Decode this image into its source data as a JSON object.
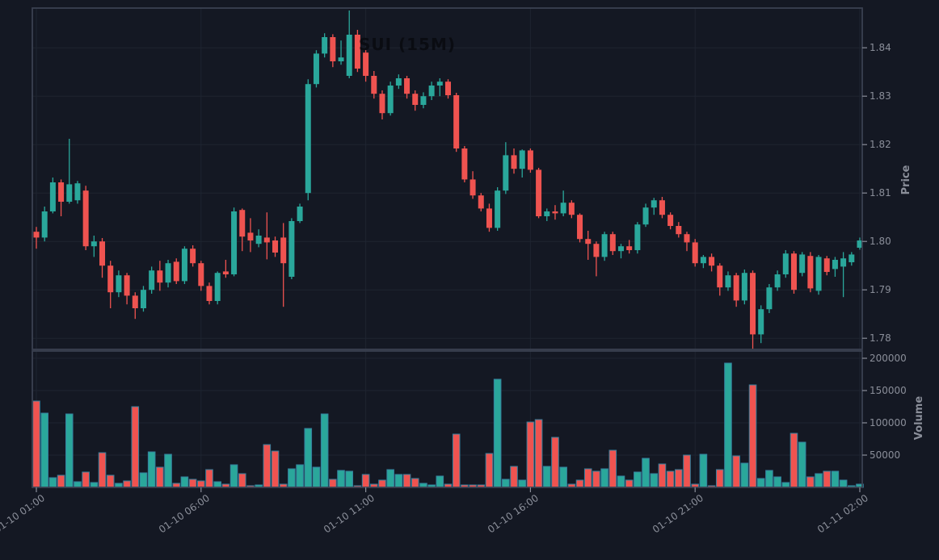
{
  "title": "SUI (15M)",
  "symbol": "SUI",
  "timeframe": "15M",
  "colors": {
    "background": "#141823",
    "up": "#2aa79b",
    "down": "#ef5350",
    "volume_edge": "#35809e",
    "grid": "#1e2430",
    "spine": "#3a4150",
    "tick_text": "#8a8e99",
    "title_text": "#0a0c12"
  },
  "price_axis": {
    "label": "Price",
    "ticks": [
      {
        "label": "1.84",
        "value": 1.84
      },
      {
        "label": "1.83",
        "value": 1.83
      },
      {
        "label": "1.82",
        "value": 1.82
      },
      {
        "label": "1.81",
        "value": 1.81
      },
      {
        "label": "1.80",
        "value": 1.8
      },
      {
        "label": "1.79",
        "value": 1.79
      },
      {
        "label": "1.78",
        "value": 1.78
      }
    ]
  },
  "volume_axis": {
    "label": "Volume",
    "ticks": [
      {
        "label": "200000",
        "value": 200000
      },
      {
        "label": "150000",
        "value": 150000
      },
      {
        "label": "100000",
        "value": 100000
      },
      {
        "label": "50000",
        "value": 50000
      }
    ]
  },
  "time_axis": {
    "ticks": [
      {
        "label": "01-10 01:00",
        "index": 0
      },
      {
        "label": "01-10 06:00",
        "index": 20
      },
      {
        "label": "01-10 11:00",
        "index": 40
      },
      {
        "label": "01-10 16:00",
        "index": 60
      },
      {
        "label": "01-10 21:00",
        "index": 80
      },
      {
        "label": "01-11 02:00",
        "index": 100
      }
    ]
  },
  "chart_data": {
    "type": "candlestick_with_volume",
    "symbol": "SUI",
    "interval": "15M",
    "title": "SUI (15M)",
    "start_time": "01-10 01:00",
    "step_minutes": 15,
    "grid": true,
    "legend": false,
    "price_ylim": [
      1.7777,
      1.8482
    ],
    "volume_ylim": [
      0,
      211250
    ],
    "columns": [
      "open",
      "high",
      "low",
      "close",
      "volume"
    ],
    "candles": [
      [
        1.802,
        1.803,
        1.7985,
        1.8008,
        133750
      ],
      [
        1.8008,
        1.8072,
        1.8,
        1.8062,
        115000
      ],
      [
        1.8062,
        1.8132,
        1.8058,
        1.8122,
        15000
      ],
      [
        1.8122,
        1.8128,
        1.8052,
        1.8082,
        18750
      ],
      [
        1.8082,
        1.8212,
        1.8078,
        1.8118,
        113750
      ],
      [
        1.8085,
        1.8125,
        1.8078,
        1.812,
        8750
      ],
      [
        1.8105,
        1.8115,
        1.7982,
        1.799,
        23750
      ],
      [
        1.799,
        1.8012,
        1.7968,
        1.8,
        7500
      ],
      [
        1.8,
        1.8007,
        1.7925,
        1.795,
        53750
      ],
      [
        1.795,
        1.796,
        1.7862,
        1.7895,
        18750
      ],
      [
        1.7895,
        1.794,
        1.7885,
        1.793,
        6250
      ],
      [
        1.793,
        1.7935,
        1.787,
        1.7888,
        10000
      ],
      [
        1.7888,
        1.7895,
        1.784,
        1.7862,
        125000
      ],
      [
        1.7862,
        1.7908,
        1.7855,
        1.79,
        22500
      ],
      [
        1.79,
        1.7948,
        1.7892,
        1.794,
        55000
      ],
      [
        1.794,
        1.796,
        1.7898,
        1.7915,
        31250
      ],
      [
        1.7915,
        1.7962,
        1.7905,
        1.7955,
        51250
      ],
      [
        1.7958,
        1.7965,
        1.7912,
        1.7918,
        6250
      ],
      [
        1.7918,
        1.799,
        1.7912,
        1.7985,
        16250
      ],
      [
        1.7985,
        1.7992,
        1.7948,
        1.7955,
        12500
      ],
      [
        1.7955,
        1.796,
        1.7898,
        1.7908,
        10000
      ],
      [
        1.7908,
        1.7915,
        1.787,
        1.7877,
        27500
      ],
      [
        1.7877,
        1.7938,
        1.787,
        1.7935,
        8750
      ],
      [
        1.7938,
        1.7962,
        1.7925,
        1.7932,
        5000
      ],
      [
        1.7932,
        1.807,
        1.7928,
        1.8062,
        35000
      ],
      [
        1.8065,
        1.8068,
        1.798,
        1.801,
        21250
      ],
      [
        1.8018,
        1.8048,
        1.7978,
        1.8002,
        2500
      ],
      [
        1.7995,
        1.8025,
        1.7988,
        1.8012,
        3750
      ],
      [
        1.8008,
        1.806,
        1.7963,
        1.7998,
        66250
      ],
      [
        1.8002,
        1.801,
        1.7968,
        1.7977,
        56250
      ],
      [
        1.8008,
        1.8038,
        1.7865,
        1.7955,
        5000
      ],
      [
        1.7927,
        1.8048,
        1.7922,
        1.8042,
        28750
      ],
      [
        1.8042,
        1.8078,
        1.8038,
        1.8072,
        35000
      ],
      [
        1.81,
        1.8335,
        1.8085,
        1.8325,
        91250
      ],
      [
        1.8325,
        1.8395,
        1.8318,
        1.8388,
        31250
      ],
      [
        1.8388,
        1.843,
        1.838,
        1.8422,
        113750
      ],
      [
        1.8422,
        1.8428,
        1.836,
        1.8372,
        12500
      ],
      [
        1.8372,
        1.8415,
        1.8365,
        1.838,
        26250
      ],
      [
        1.8342,
        1.8477,
        1.8337,
        1.8427,
        25000
      ],
      [
        1.8427,
        1.8437,
        1.835,
        1.8357,
        2500
      ],
      [
        1.839,
        1.8397,
        1.833,
        1.8342,
        20000
      ],
      [
        1.8342,
        1.8352,
        1.8295,
        1.8305,
        5000
      ],
      [
        1.8305,
        1.8312,
        1.8252,
        1.8265,
        11250
      ],
      [
        1.8265,
        1.833,
        1.826,
        1.8322,
        27500
      ],
      [
        1.8322,
        1.8345,
        1.8315,
        1.8337,
        20000
      ],
      [
        1.8337,
        1.8342,
        1.8295,
        1.8305,
        20000
      ],
      [
        1.8305,
        1.8312,
        1.827,
        1.8282,
        13750
      ],
      [
        1.8282,
        1.8308,
        1.8275,
        1.83,
        6250
      ],
      [
        1.83,
        1.833,
        1.8292,
        1.8322,
        3750
      ],
      [
        1.8322,
        1.8337,
        1.83,
        1.833,
        17500
      ],
      [
        1.833,
        1.8335,
        1.8295,
        1.8302,
        5000
      ],
      [
        1.8302,
        1.8307,
        1.8185,
        1.8192,
        82500
      ],
      [
        1.8192,
        1.8197,
        1.8122,
        1.8128,
        3750
      ],
      [
        1.8128,
        1.8145,
        1.8088,
        1.8095,
        3750
      ],
      [
        1.8095,
        1.81,
        1.8062,
        1.8068,
        3750
      ],
      [
        1.8068,
        1.8078,
        1.802,
        1.8028,
        52500
      ],
      [
        1.8028,
        1.8112,
        1.8022,
        1.8105,
        167500
      ],
      [
        1.8105,
        1.8205,
        1.8098,
        1.8178,
        12500
      ],
      [
        1.8178,
        1.8192,
        1.814,
        1.815,
        32500
      ],
      [
        1.815,
        1.819,
        1.8132,
        1.8188,
        11250
      ],
      [
        1.8188,
        1.8192,
        1.8142,
        1.8148,
        101250
      ],
      [
        1.8148,
        1.8152,
        1.8048,
        1.8052,
        105000
      ],
      [
        1.8052,
        1.8068,
        1.8042,
        1.8062,
        32500
      ],
      [
        1.8062,
        1.8075,
        1.8045,
        1.8058,
        77500
      ],
      [
        1.8058,
        1.8105,
        1.8052,
        1.808,
        31250
      ],
      [
        1.808,
        1.8085,
        1.8048,
        1.8055,
        5000
      ],
      [
        1.8055,
        1.8058,
        1.7998,
        1.8005,
        11250
      ],
      [
        1.8005,
        1.8022,
        1.7962,
        1.7995,
        28750
      ],
      [
        1.7995,
        1.8,
        1.7928,
        1.7968,
        25000
      ],
      [
        1.7968,
        1.802,
        1.796,
        1.8015,
        28750
      ],
      [
        1.8015,
        1.802,
        1.7972,
        1.798,
        57500
      ],
      [
        1.798,
        1.7995,
        1.7965,
        1.799,
        17500
      ],
      [
        1.799,
        1.8003,
        1.7975,
        1.7982,
        11250
      ],
      [
        1.7982,
        1.804,
        1.7975,
        1.8035,
        23750
      ],
      [
        1.8035,
        1.8078,
        1.803,
        1.807,
        45000
      ],
      [
        1.807,
        1.809,
        1.8055,
        1.8085,
        21250
      ],
      [
        1.8085,
        1.8092,
        1.8048,
        1.8055,
        36250
      ],
      [
        1.8055,
        1.806,
        1.8025,
        1.8032,
        25000
      ],
      [
        1.8032,
        1.804,
        1.8008,
        1.8015,
        27500
      ],
      [
        1.8015,
        1.802,
        1.798,
        1.7998,
        50000
      ],
      [
        1.7998,
        1.8005,
        1.7948,
        1.7955,
        5000
      ],
      [
        1.7955,
        1.7972,
        1.7945,
        1.7968,
        51250
      ],
      [
        1.7968,
        1.7975,
        1.7938,
        1.795,
        2500
      ],
      [
        1.795,
        1.7955,
        1.7888,
        1.7905,
        27500
      ],
      [
        1.7905,
        1.7938,
        1.7898,
        1.793,
        192500
      ],
      [
        1.793,
        1.7935,
        1.7865,
        1.7878,
        48750
      ],
      [
        1.7878,
        1.7942,
        1.787,
        1.7935,
        37500
      ],
      [
        1.7935,
        1.794,
        1.7778,
        1.7808,
        158750
      ],
      [
        1.7808,
        1.7868,
        1.779,
        1.786,
        13750
      ],
      [
        1.786,
        1.7912,
        1.7852,
        1.7905,
        26250
      ],
      [
        1.7905,
        1.794,
        1.7898,
        1.7932,
        16250
      ],
      [
        1.7932,
        1.7982,
        1.7925,
        1.7975,
        7500
      ],
      [
        1.7975,
        1.798,
        1.7892,
        1.79,
        83750
      ],
      [
        1.7935,
        1.7978,
        1.7928,
        1.7973,
        70000
      ],
      [
        1.797,
        1.7978,
        1.7895,
        1.7903,
        16250
      ],
      [
        1.7898,
        1.7972,
        1.789,
        1.7968,
        21250
      ],
      [
        1.7965,
        1.797,
        1.793,
        1.7937,
        25000
      ],
      [
        1.7943,
        1.7968,
        1.7927,
        1.7962,
        25000
      ],
      [
        1.7948,
        1.7978,
        1.7885,
        1.7965,
        11250
      ],
      [
        1.7957,
        1.7978,
        1.795,
        1.7973,
        2500
      ],
      [
        1.7987,
        1.8008,
        1.7983,
        1.8002,
        5000
      ]
    ]
  }
}
